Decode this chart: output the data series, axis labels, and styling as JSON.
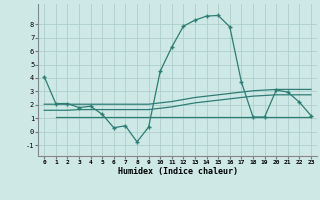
{
  "xlabel": "Humidex (Indice chaleur)",
  "background_color": "#cde8e5",
  "grid_color": "#aecfcc",
  "line_color": "#2d7d74",
  "xlim": [
    -0.5,
    23.5
  ],
  "ylim": [
    -1.8,
    9.5
  ],
  "xticks": [
    0,
    1,
    2,
    3,
    4,
    5,
    6,
    7,
    8,
    9,
    10,
    11,
    12,
    13,
    14,
    15,
    16,
    17,
    18,
    19,
    20,
    21,
    22,
    23
  ],
  "yticks": [
    -1,
    0,
    1,
    2,
    3,
    4,
    5,
    6,
    7,
    8
  ],
  "line1_x": [
    0,
    1,
    2,
    3,
    4,
    5,
    6,
    7,
    8,
    9,
    10,
    11,
    12,
    13,
    14,
    15,
    16,
    17,
    18,
    19,
    20,
    21,
    22,
    23
  ],
  "line1_y": [
    4.1,
    2.1,
    2.1,
    1.8,
    1.9,
    1.3,
    0.3,
    0.45,
    -0.75,
    0.35,
    4.5,
    6.3,
    7.85,
    8.3,
    8.6,
    8.65,
    7.8,
    3.7,
    1.1,
    1.1,
    3.1,
    2.95,
    2.2,
    1.2
  ],
  "line2_x": [
    0,
    1,
    2,
    3,
    4,
    5,
    6,
    7,
    8,
    9,
    10,
    11,
    12,
    13,
    14,
    15,
    16,
    17,
    18,
    19,
    20,
    21,
    22,
    23
  ],
  "line2_y": [
    2.05,
    2.05,
    2.05,
    2.05,
    2.05,
    2.05,
    2.05,
    2.05,
    2.05,
    2.05,
    2.15,
    2.25,
    2.4,
    2.55,
    2.65,
    2.75,
    2.85,
    2.95,
    3.05,
    3.1,
    3.15,
    3.15,
    3.15,
    3.15
  ],
  "line3_x": [
    0,
    1,
    2,
    3,
    4,
    5,
    6,
    7,
    8,
    9,
    10,
    11,
    12,
    13,
    14,
    15,
    16,
    17,
    18,
    19,
    20,
    21,
    22,
    23
  ],
  "line3_y": [
    1.6,
    1.6,
    1.6,
    1.65,
    1.65,
    1.65,
    1.65,
    1.65,
    1.65,
    1.65,
    1.75,
    1.85,
    2.0,
    2.15,
    2.25,
    2.35,
    2.45,
    2.55,
    2.65,
    2.7,
    2.75,
    2.75,
    2.75,
    2.75
  ],
  "line4_x": [
    1,
    2,
    3,
    4,
    5,
    6,
    7,
    8,
    9,
    10,
    11,
    12,
    13,
    14,
    15,
    16,
    17,
    18,
    19,
    20,
    21,
    22,
    23
  ],
  "line4_y": [
    1.1,
    1.1,
    1.1,
    1.1,
    1.1,
    1.1,
    1.1,
    1.1,
    1.1,
    1.1,
    1.1,
    1.1,
    1.1,
    1.1,
    1.1,
    1.1,
    1.1,
    1.1,
    1.1,
    1.1,
    1.1,
    1.1,
    1.1
  ]
}
